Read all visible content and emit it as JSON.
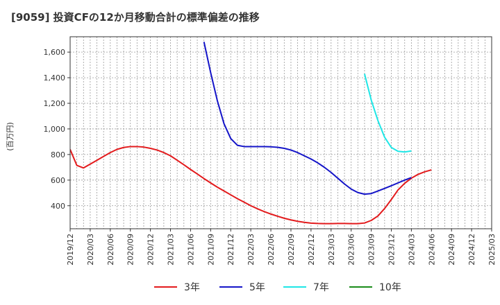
{
  "chart_data": {
    "type": "line",
    "title": "[9059]  投資CFの12か月移動合計の標準偏差の推移",
    "ylabel": "(百万円)",
    "xlabel": "",
    "ylim": [
      220,
      1720
    ],
    "yticks": [
      400,
      600,
      800,
      1000,
      1200,
      1400,
      1600
    ],
    "ytick_labels": [
      "400",
      "600",
      "800",
      "1,000",
      "1,200",
      "1,400",
      "1,600"
    ],
    "x_categories": [
      "2019/12",
      "2020/03",
      "2020/06",
      "2020/09",
      "2020/12",
      "2021/03",
      "2021/06",
      "2021/09",
      "2021/12",
      "2022/03",
      "2022/06",
      "2022/09",
      "2022/12",
      "2023/03",
      "2023/06",
      "2023/09",
      "2023/12",
      "2024/03",
      "2024/06",
      "2024/09",
      "2024/12",
      "2025/03"
    ],
    "grid": true,
    "legend_position": "bottom",
    "series": [
      {
        "name": "3年",
        "color": "#e31a1c",
        "start": "2019/12",
        "values": [
          840,
          715,
          695,
          725,
          755,
          785,
          815,
          840,
          855,
          862,
          862,
          858,
          848,
          835,
          815,
          790,
          755,
          720,
          683,
          648,
          612,
          578,
          545,
          515,
          485,
          455,
          428,
          400,
          376,
          354,
          335,
          318,
          302,
          289,
          278,
          270,
          264,
          261,
          260,
          260,
          261,
          261,
          260,
          260,
          265,
          285,
          320,
          378,
          448,
          523,
          575,
          615,
          645,
          665,
          680
        ]
      },
      {
        "name": "5年",
        "color": "#1414c8",
        "start": "2021/08",
        "values": [
          1680,
          1440,
          1220,
          1040,
          925,
          872,
          862,
          862,
          862,
          862,
          860,
          856,
          848,
          835,
          815,
          790,
          765,
          735,
          700,
          660,
          615,
          570,
          530,
          503,
          490,
          495,
          515,
          535,
          556,
          578,
          600,
          620
        ]
      },
      {
        "name": "7年",
        "color": "#1ee6e6",
        "start": "2023/08",
        "values": [
          1430,
          1225,
          1065,
          935,
          855,
          825,
          820,
          828
        ]
      },
      {
        "name": "10年",
        "color": "#1a8c1a",
        "start": "",
        "values": []
      }
    ]
  }
}
